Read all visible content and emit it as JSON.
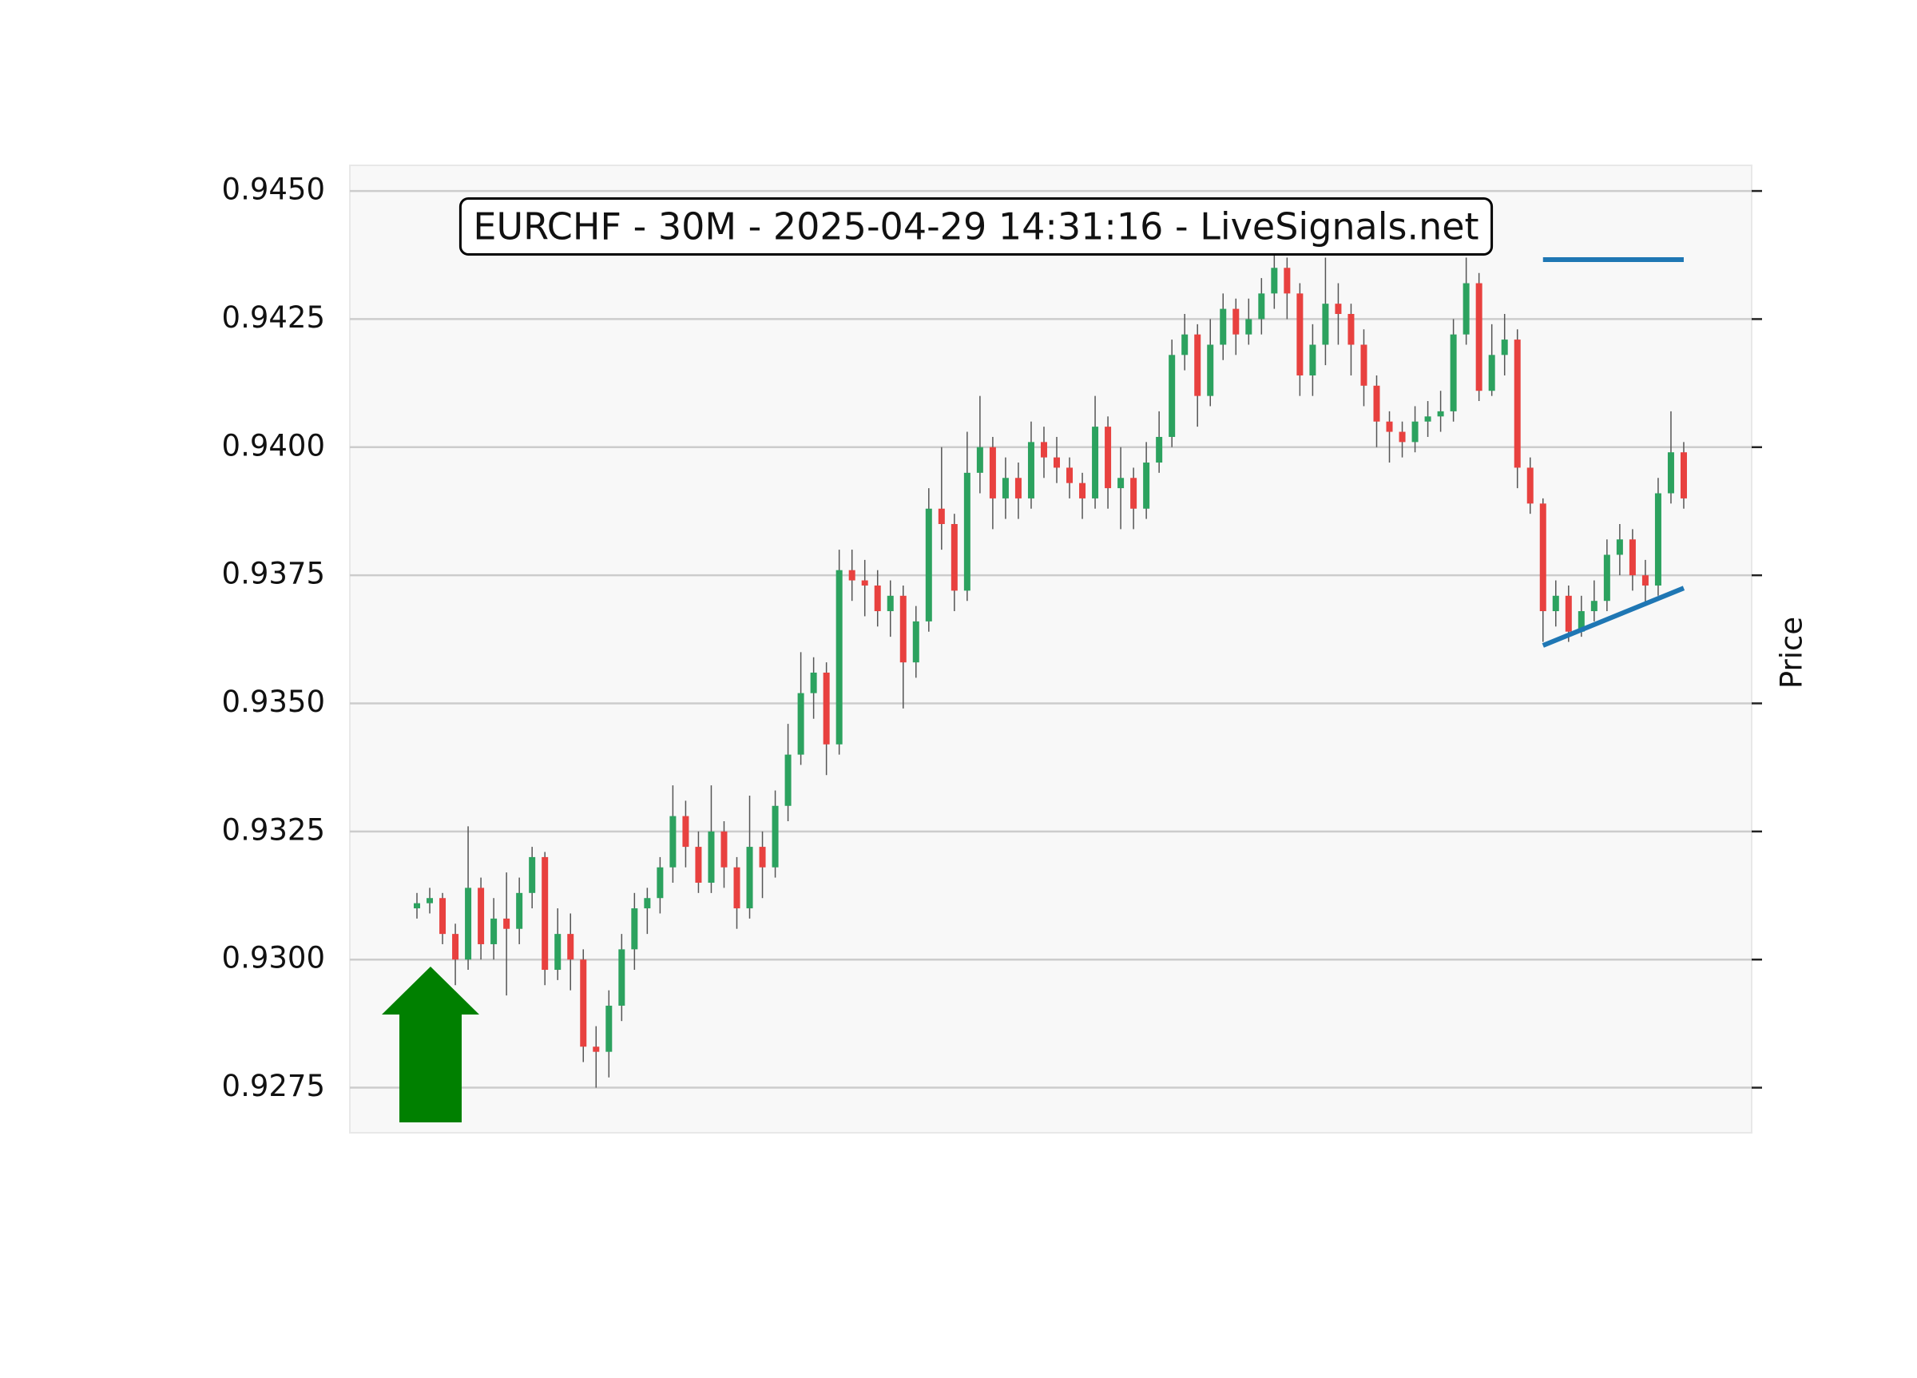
{
  "chart_data": {
    "type": "candlestick",
    "title": "EURCHF - 30M - 2025-04-29 14:31:16 - LiveSignals.net",
    "y_label": "Price",
    "open": [
      0.931,
      0.9311,
      0.9312,
      0.9305,
      0.93,
      0.9314,
      0.9303,
      0.9308,
      0.9306,
      0.9313,
      0.932,
      0.9298,
      0.9305,
      0.93,
      0.9283,
      0.9282,
      0.9291,
      0.9302,
      0.931,
      0.9312,
      0.9318,
      0.9328,
      0.9322,
      0.9315,
      0.9325,
      0.9318,
      0.931,
      0.9322,
      0.9318,
      0.933,
      0.934,
      0.9352,
      0.9356,
      0.9342,
      0.9376,
      0.9374,
      0.9373,
      0.9368,
      0.9371,
      0.9358,
      0.9366,
      0.9388,
      0.9385,
      0.9372,
      0.9395,
      0.94,
      0.939,
      0.9394,
      0.939,
      0.9401,
      0.9398,
      0.9396,
      0.9393,
      0.939,
      0.9404,
      0.9392,
      0.9394,
      0.9388,
      0.9397,
      0.9402,
      0.9418,
      0.9422,
      0.941,
      0.942,
      0.9427,
      0.9422,
      0.9425,
      0.943,
      0.9435,
      0.943,
      0.9414,
      0.942,
      0.9428,
      0.9426,
      0.942,
      0.9412,
      0.9405,
      0.9403,
      0.9401,
      0.9405,
      0.9406,
      0.9407,
      0.9422,
      0.9432,
      0.9411,
      0.9418,
      0.9421,
      0.9396,
      0.9389,
      0.9368,
      0.9371,
      0.9364,
      0.9368,
      0.937,
      0.9379,
      0.9382,
      0.9375,
      0.9373,
      0.9391,
      0.9399
    ],
    "high": [
      0.9313,
      0.9314,
      0.9313,
      0.9307,
      0.9326,
      0.9316,
      0.9312,
      0.9317,
      0.9316,
      0.9322,
      0.9321,
      0.931,
      0.9309,
      0.9302,
      0.9287,
      0.9294,
      0.9305,
      0.9313,
      0.9314,
      0.932,
      0.9334,
      0.9331,
      0.9325,
      0.9334,
      0.9327,
      0.932,
      0.9332,
      0.9325,
      0.9333,
      0.9346,
      0.936,
      0.9359,
      0.9358,
      0.938,
      0.938,
      0.9378,
      0.9376,
      0.9374,
      0.9373,
      0.9369,
      0.9392,
      0.94,
      0.9387,
      0.9403,
      0.941,
      0.9402,
      0.9398,
      0.9397,
      0.9405,
      0.9404,
      0.9402,
      0.9398,
      0.9395,
      0.941,
      0.9406,
      0.94,
      0.9396,
      0.9401,
      0.9407,
      0.9421,
      0.9426,
      0.9424,
      0.9425,
      0.943,
      0.9429,
      0.9429,
      0.9433,
      0.9438,
      0.9437,
      0.9432,
      0.9424,
      0.9437,
      0.9432,
      0.9428,
      0.9423,
      0.9414,
      0.9407,
      0.9405,
      0.9408,
      0.9409,
      0.9411,
      0.9425,
      0.9437,
      0.9434,
      0.9424,
      0.9426,
      0.9423,
      0.9398,
      0.939,
      0.9374,
      0.9373,
      0.9371,
      0.9374,
      0.9382,
      0.9385,
      0.9384,
      0.9378,
      0.9394,
      0.9407,
      0.9401
    ],
    "low": [
      0.9308,
      0.9309,
      0.9303,
      0.9295,
      0.9298,
      0.93,
      0.93,
      0.9293,
      0.9303,
      0.931,
      0.9295,
      0.9296,
      0.9294,
      0.928,
      0.9275,
      0.9277,
      0.9288,
      0.9298,
      0.9305,
      0.9309,
      0.9315,
      0.9318,
      0.9313,
      0.9313,
      0.9314,
      0.9306,
      0.9308,
      0.9312,
      0.9316,
      0.9327,
      0.9338,
      0.9347,
      0.9336,
      0.934,
      0.937,
      0.9367,
      0.9365,
      0.9363,
      0.9349,
      0.9355,
      0.9364,
      0.938,
      0.9368,
      0.937,
      0.9391,
      0.9384,
      0.9386,
      0.9386,
      0.9388,
      0.9394,
      0.9393,
      0.939,
      0.9386,
      0.9388,
      0.9388,
      0.9384,
      0.9384,
      0.9386,
      0.9395,
      0.94,
      0.9415,
      0.9404,
      0.9408,
      0.9417,
      0.9418,
      0.942,
      0.9422,
      0.9427,
      0.9425,
      0.941,
      0.941,
      0.9416,
      0.942,
      0.9414,
      0.9408,
      0.94,
      0.9397,
      0.9398,
      0.9399,
      0.9402,
      0.9403,
      0.9405,
      0.942,
      0.9409,
      0.941,
      0.9414,
      0.9392,
      0.9387,
      0.9362,
      0.9365,
      0.9362,
      0.9363,
      0.9366,
      0.9368,
      0.9375,
      0.9372,
      0.9369,
      0.9371,
      0.9389,
      0.9388
    ],
    "close": [
      0.9311,
      0.9312,
      0.9305,
      0.93,
      0.9314,
      0.9303,
      0.9308,
      0.9306,
      0.9313,
      0.932,
      0.9298,
      0.9305,
      0.93,
      0.9283,
      0.9282,
      0.9291,
      0.9302,
      0.931,
      0.9312,
      0.9318,
      0.9328,
      0.9322,
      0.9315,
      0.9325,
      0.9318,
      0.931,
      0.9322,
      0.9318,
      0.933,
      0.934,
      0.9352,
      0.9356,
      0.9342,
      0.9376,
      0.9374,
      0.9373,
      0.9368,
      0.9371,
      0.9358,
      0.9366,
      0.9388,
      0.9385,
      0.9372,
      0.9395,
      0.94,
      0.939,
      0.9394,
      0.939,
      0.9401,
      0.9398,
      0.9396,
      0.9393,
      0.939,
      0.9404,
      0.9392,
      0.9394,
      0.9388,
      0.9397,
      0.9402,
      0.9418,
      0.9422,
      0.941,
      0.942,
      0.9427,
      0.9422,
      0.9425,
      0.943,
      0.9435,
      0.943,
      0.9414,
      0.942,
      0.9428,
      0.9426,
      0.942,
      0.9412,
      0.9405,
      0.9403,
      0.9401,
      0.9405,
      0.9406,
      0.9407,
      0.9422,
      0.9432,
      0.9411,
      0.9418,
      0.9421,
      0.9396,
      0.9389,
      0.9368,
      0.9371,
      0.9364,
      0.9368,
      0.937,
      0.9379,
      0.9382,
      0.9375,
      0.9373,
      0.9391,
      0.9399,
      0.939
    ],
    "up_color": "#2ca25f",
    "down_color": "#e8413f",
    "wick_color": "#555555",
    "arrow_color": "#008000",
    "lines": [
      {
        "x": [
          88,
          99
        ],
        "values": [
          0.94366,
          0.94366
        ],
        "color": "#1f77b4"
      },
      {
        "x": [
          88,
          99
        ],
        "values": [
          0.93613,
          0.93725
        ],
        "color": "#1f77b4"
      }
    ],
    "ylim": [
      0.92662,
      0.9455
    ],
    "yticks": [
      0.9275,
      {
        "value": 0.93,
        "label": "0.9300"
      },
      0.9325,
      {
        "value": 0.935,
        "label": "0.9350"
      },
      0.9375,
      {
        "value": 0.94,
        "label": "0.9400"
      },
      0.9425,
      {
        "value": 0.945,
        "label": "0.9450"
      }
    ],
    "grid": true
  }
}
